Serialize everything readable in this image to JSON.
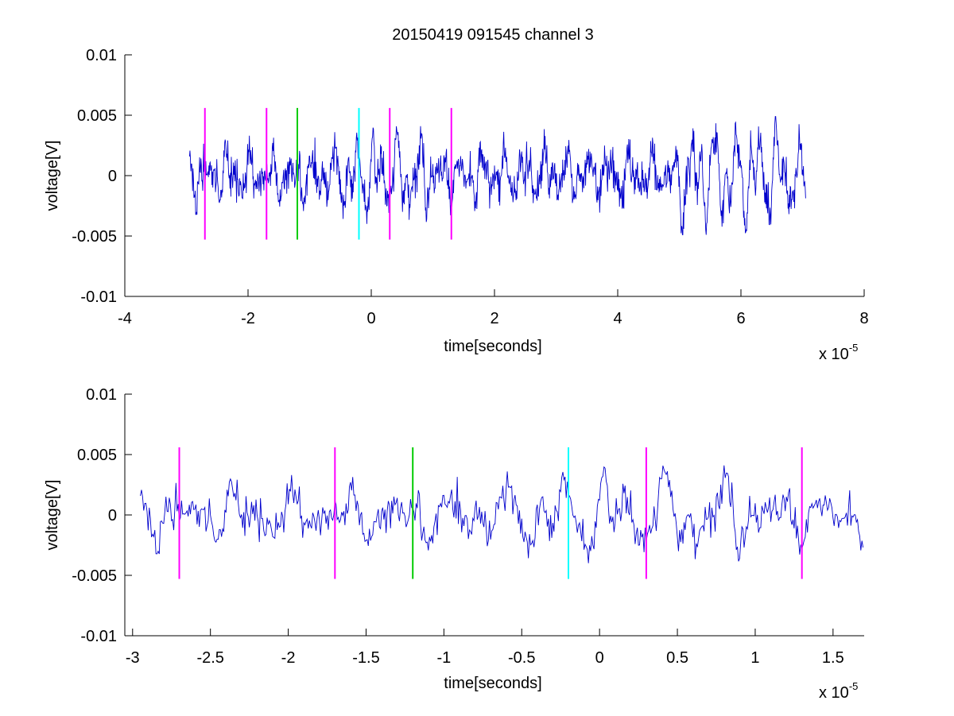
{
  "figure": {
    "title": "20150419 091545 channel 3"
  },
  "chart_data": [
    {
      "type": "line",
      "xlabel": "time[seconds]",
      "ylabel": "voltage[V]",
      "x_exponent_label": "x 10",
      "x_exponent": "-5",
      "xlim": [
        -4,
        8
      ],
      "ylim": [
        -0.01,
        0.01
      ],
      "xticks": [
        -4,
        -2,
        0,
        2,
        4,
        6,
        8
      ],
      "xtick_labels": [
        "-4",
        "-2",
        "0",
        "2",
        "4",
        "6",
        "8"
      ],
      "yticks": [
        -0.01,
        -0.005,
        0,
        0.005,
        0.01
      ],
      "ytick_labels": [
        "-0.01",
        "-0.005",
        "0",
        "0.005",
        "0.01"
      ],
      "grid": false,
      "signal": {
        "color": "#0000cc",
        "x_start": -2.95,
        "x_end": 7.05,
        "x_unit_note": ""
      },
      "markers": [
        {
          "x": -2.7,
          "color": "#ff00ff"
        },
        {
          "x": -1.7,
          "color": "#ff00ff"
        },
        {
          "x": -1.2,
          "color": "#00cc00"
        },
        {
          "x": -0.2,
          "color": "#00ffff"
        },
        {
          "x": 0.3,
          "color": "#ff00ff"
        },
        {
          "x": 1.3,
          "color": "#ff00ff"
        }
      ],
      "marker_yrange": [
        -0.0053,
        0.0056
      ]
    },
    {
      "type": "line",
      "xlabel": "time[seconds]",
      "ylabel": "voltage[V]",
      "x_exponent_label": "x 10",
      "x_exponent": "-5",
      "xlim": [
        -3.05,
        1.7
      ],
      "ylim": [
        -0.01,
        0.01
      ],
      "xticks": [
        -3,
        -2.5,
        -2,
        -1.5,
        -1,
        -0.5,
        0,
        0.5,
        1,
        1.5
      ],
      "xtick_labels": [
        "-3",
        "-2.5",
        "-2",
        "-1.5",
        "-1",
        "-0.5",
        "0",
        "0.5",
        "1",
        "1.5"
      ],
      "yticks": [
        -0.01,
        -0.005,
        0,
        0.005,
        0.01
      ],
      "ytick_labels": [
        "-0.01",
        "-0.005",
        "0",
        "0.005",
        "0.01"
      ],
      "grid": false,
      "signal": {
        "color": "#0000cc",
        "x_start": -2.95,
        "x_end": 1.7
      },
      "markers": [
        {
          "x": -2.7,
          "color": "#ff00ff"
        },
        {
          "x": -1.7,
          "color": "#ff00ff"
        },
        {
          "x": -1.2,
          "color": "#00cc00"
        },
        {
          "x": -0.2,
          "color": "#00ffff"
        },
        {
          "x": 0.3,
          "color": "#ff00ff"
        },
        {
          "x": 1.3,
          "color": "#ff00ff"
        }
      ],
      "marker_yrange": [
        -0.0053,
        0.0056
      ]
    }
  ]
}
